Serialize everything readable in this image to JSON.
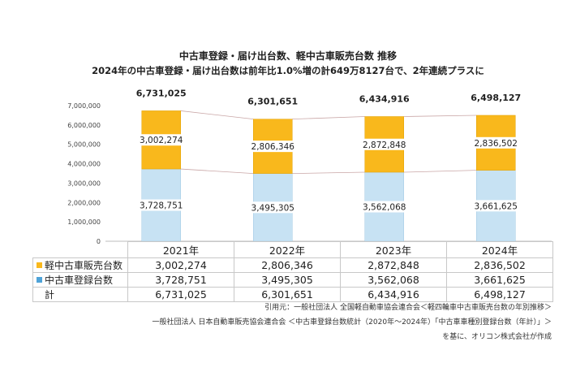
{
  "titles": {
    "line1": "中古車登録・届け出台数、軽中古車販売台数 推移",
    "line2": "2024年の中古車登録・届け出台数は前年比1.0%増の計649万8127台で、2年連続プラスに"
  },
  "chart_data": {
    "type": "bar",
    "stacked": true,
    "categories": [
      "2021年",
      "2022年",
      "2023年",
      "2024年"
    ],
    "series": [
      {
        "name": "中古車登録台数",
        "values": [
          3728751,
          3495305,
          3562068,
          3661625
        ],
        "labels": [
          "3,728,751",
          "3,495,305",
          "3,562,068",
          "3,661,625"
        ],
        "color": "#c7e2f3"
      },
      {
        "name": "軽中古車販売台数",
        "values": [
          3002274,
          2806346,
          2872848,
          2836502
        ],
        "labels": [
          "3,002,274",
          "2,806,346",
          "2,872,848",
          "2,836,502"
        ],
        "color": "#f9b81c"
      }
    ],
    "totals": [
      6731025,
      6301651,
      6434916,
      6498127
    ],
    "total_labels": [
      "6,731,025",
      "6,301,651",
      "6,434,916",
      "6,498,127"
    ],
    "yticks": [
      "0",
      "1,000,000",
      "2,000,000",
      "3,000,000",
      "4,000,000",
      "5,000,000",
      "6,000,000",
      "7,000,000"
    ],
    "ylim": [
      0,
      7000000
    ],
    "grid": false,
    "connector_lines": true
  },
  "table": {
    "years": [
      "2021年",
      "2022年",
      "2023年",
      "2024年"
    ],
    "rows": [
      {
        "label": "軽中古車販売台数",
        "swatch": "#f9b81c",
        "values": [
          "3,002,274",
          "2,806,346",
          "2,872,848",
          "2,836,502"
        ]
      },
      {
        "label": "中古車登録台数",
        "swatch": "#4fa3d8",
        "values": [
          "3,728,751",
          "3,495,305",
          "3,562,068",
          "3,661,625"
        ]
      },
      {
        "label": "計",
        "swatch": "",
        "values": [
          "6,731,025",
          "6,301,651",
          "6,434,916",
          "6,498,127"
        ]
      }
    ]
  },
  "sources": {
    "line1": "引用元：一般社団法人 全国軽自動車協会連合会＜軽四輪車中古車販売台数の年別推移＞",
    "line2": "一般社団法人 日本自動車販売協会連合会 ＜中古車登録台数統計（2020年～2024年）「中古車車種別登録台数（年計）」＞",
    "line3": "を基に、オリコン株式会社が作成"
  }
}
